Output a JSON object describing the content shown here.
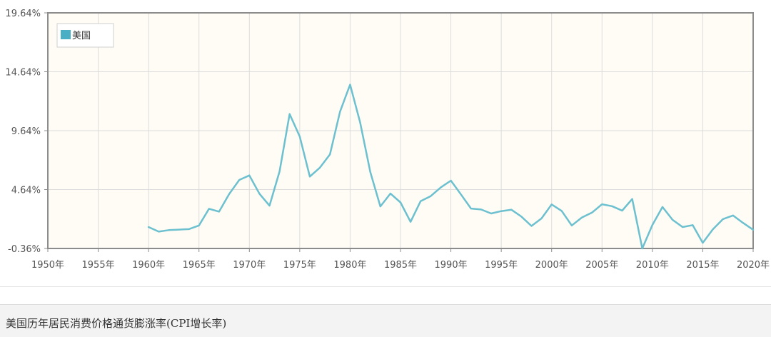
{
  "caption": "美国历年居民消费价格通货膨涨率(CPI增长率)",
  "colors": {
    "series": "#6cc0cf",
    "legend_swatch": "#4aaec4",
    "plot_bg": "#fefcf4",
    "grid": "#dcdcdc",
    "axis": "#8c8c8c"
  },
  "chart_data": {
    "type": "line",
    "grid": true,
    "legend_position": "top-left",
    "legend": [
      "美国"
    ],
    "xlim": [
      1950,
      2020
    ],
    "x_ticks": [
      1950,
      1955,
      1960,
      1965,
      1970,
      1975,
      1980,
      1985,
      1990,
      1995,
      2000,
      2005,
      2010,
      2015,
      2020
    ],
    "x_tick_labels": [
      "1950年",
      "1955年",
      "1960年",
      "1965年",
      "1970年",
      "1975年",
      "1980年",
      "1985年",
      "1990年",
      "1995年",
      "2000年",
      "2005年",
      "2010年",
      "2015年",
      "2020年"
    ],
    "ylim": [
      -0.36,
      19.64
    ],
    "y_ticks": [
      -0.36,
      4.64,
      9.64,
      14.64,
      19.64
    ],
    "y_tick_labels": [
      "-0.36%",
      "4.64%",
      "9.64%",
      "14.64%",
      "19.64%"
    ],
    "series": [
      {
        "name": "美国",
        "x": [
          1960,
          1961,
          1962,
          1963,
          1964,
          1965,
          1966,
          1967,
          1968,
          1969,
          1970,
          1971,
          1972,
          1973,
          1974,
          1975,
          1976,
          1977,
          1978,
          1979,
          1980,
          1981,
          1982,
          1983,
          1984,
          1985,
          1986,
          1987,
          1988,
          1989,
          1990,
          1991,
          1992,
          1993,
          1994,
          1995,
          1996,
          1997,
          1998,
          1999,
          2000,
          2001,
          2002,
          2003,
          2004,
          2005,
          2006,
          2007,
          2008,
          2009,
          2010,
          2011,
          2012,
          2013,
          2014,
          2015,
          2016,
          2017,
          2018,
          2019,
          2020
        ],
        "y": [
          1.46,
          1.07,
          1.2,
          1.24,
          1.28,
          1.59,
          3.01,
          2.77,
          4.27,
          5.46,
          5.84,
          4.29,
          3.27,
          6.18,
          11.05,
          9.14,
          5.74,
          6.5,
          7.63,
          11.25,
          13.55,
          10.33,
          6.13,
          3.21,
          4.3,
          3.55,
          1.9,
          3.66,
          4.08,
          4.83,
          5.4,
          4.23,
          3.03,
          2.95,
          2.61,
          2.81,
          2.93,
          2.34,
          1.55,
          2.19,
          3.38,
          2.83,
          1.59,
          2.27,
          2.68,
          3.39,
          3.23,
          2.85,
          3.84,
          -0.36,
          1.64,
          3.16,
          2.07,
          1.46,
          1.62,
          0.12,
          1.26,
          2.13,
          2.44,
          1.81,
          1.23
        ]
      }
    ]
  }
}
